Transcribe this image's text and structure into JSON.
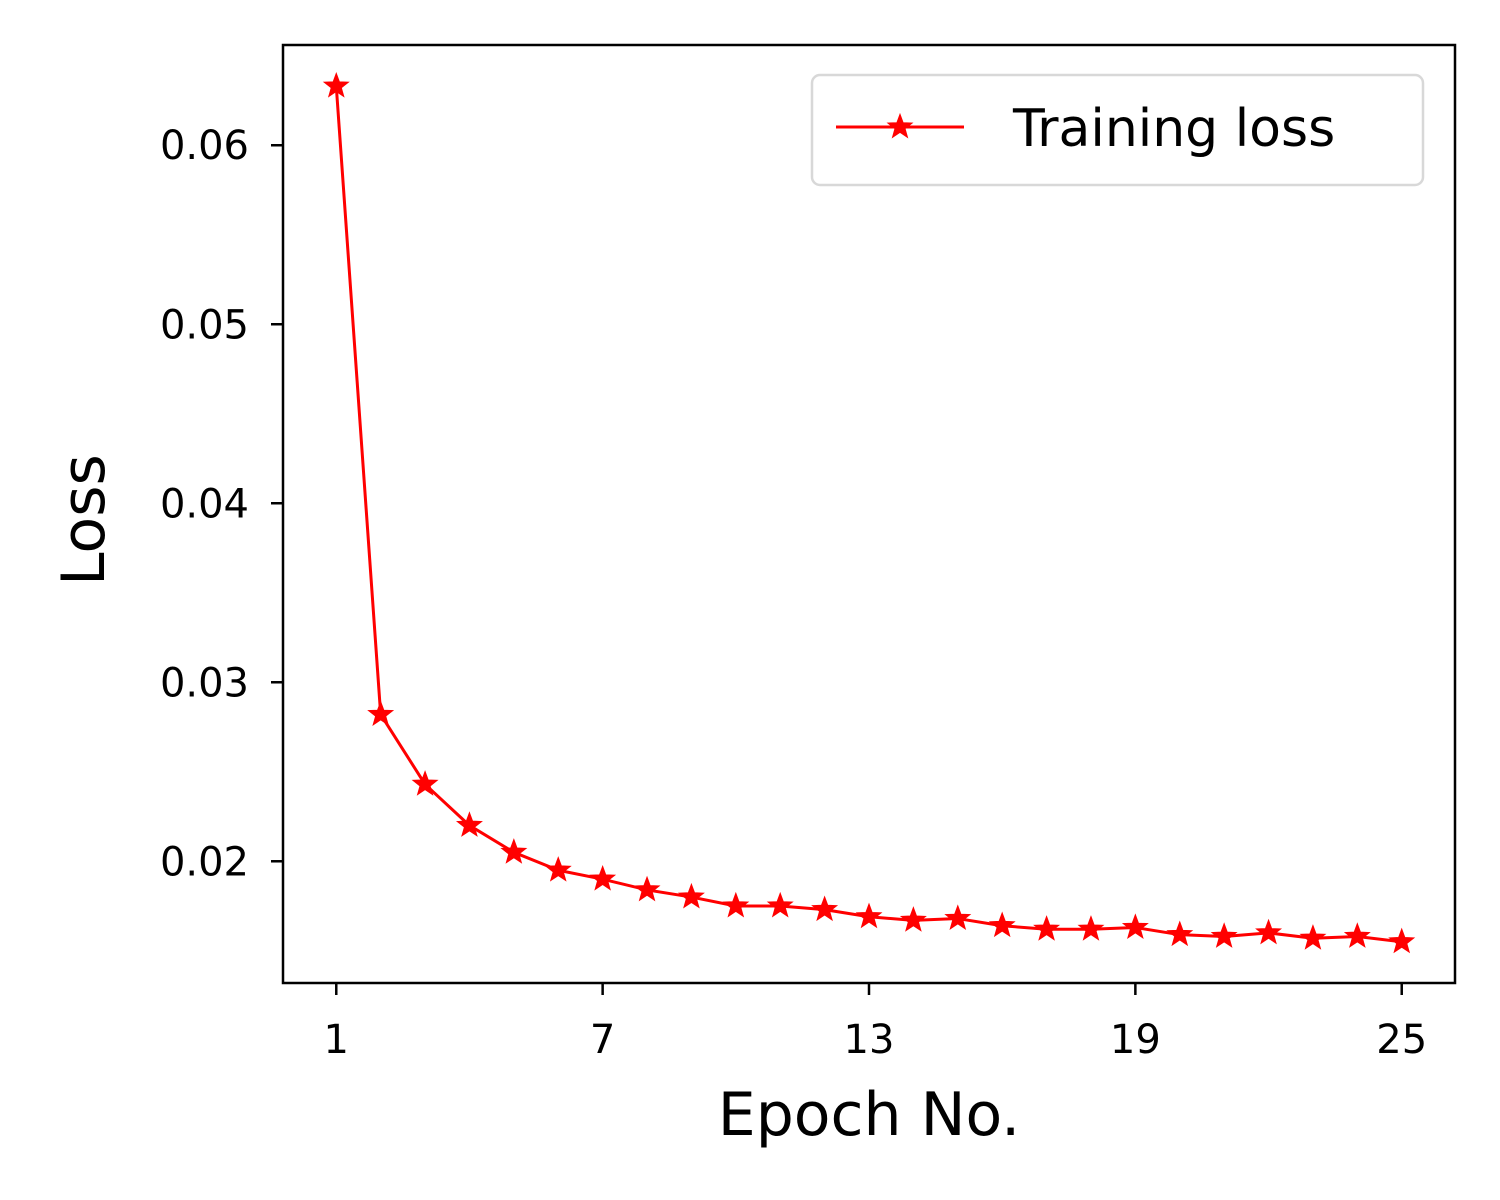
{
  "chart_data": {
    "type": "line",
    "title": "",
    "xlabel": "Epoch No.",
    "ylabel": "Loss",
    "xlim": [
      -0.2,
      26.2
    ],
    "ylim": [
      0.0132,
      0.0656
    ],
    "xticks": [
      1,
      7,
      13,
      19,
      25
    ],
    "xtick_labels": [
      "1",
      "7",
      "13",
      "19",
      "25"
    ],
    "yticks": [
      0.02,
      0.03,
      0.04,
      0.05,
      0.06
    ],
    "ytick_labels": [
      "0.02",
      "0.03",
      "0.04",
      "0.05",
      "0.06"
    ],
    "grid": false,
    "legend_position": "top-right",
    "series": [
      {
        "name": "Training loss",
        "color": "#ff0000",
        "marker": "star",
        "x": [
          1,
          2,
          3,
          4,
          5,
          6,
          7,
          8,
          9,
          10,
          11,
          12,
          13,
          14,
          15,
          16,
          17,
          18,
          19,
          20,
          21,
          22,
          23,
          24,
          25
        ],
        "y": [
          0.0633,
          0.0282,
          0.0243,
          0.022,
          0.0205,
          0.0195,
          0.019,
          0.0184,
          0.018,
          0.0175,
          0.0175,
          0.0173,
          0.0169,
          0.0167,
          0.0168,
          0.0164,
          0.0162,
          0.0162,
          0.0163,
          0.0159,
          0.0158,
          0.016,
          0.0157,
          0.0158,
          0.0155
        ]
      }
    ]
  }
}
